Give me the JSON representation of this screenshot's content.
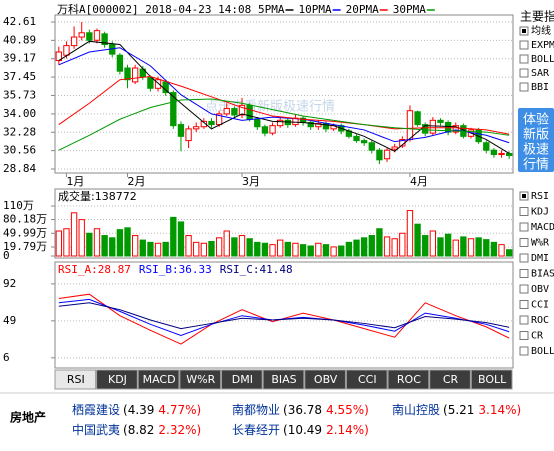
{
  "header": {
    "title": "万科A[000002] 2018-04-23 14:08"
  },
  "watermark": "点击查看新版极速行情",
  "chart_data": [
    {
      "type": "candlestick",
      "categories": [
        null,
        "1月",
        null,
        null,
        null,
        null,
        null,
        null,
        null,
        "2月",
        null,
        null,
        null,
        null,
        null,
        null,
        null,
        null,
        null,
        null,
        null,
        null,
        null,
        null,
        "3月",
        null,
        null,
        null,
        null,
        null,
        null,
        null,
        null,
        null,
        null,
        null,
        null,
        null,
        null,
        null,
        null,
        null,
        null,
        null,
        null,
        null,
        "4月",
        null,
        null,
        null,
        null,
        null,
        null,
        null,
        null,
        null,
        null,
        null,
        null,
        null
      ],
      "open": [
        39.0,
        39.5,
        40.4,
        41.2,
        41.6,
        40.9,
        41.5,
        40.5,
        39.5,
        38.3,
        37.0,
        38.2,
        37.4,
        36.4,
        37.0,
        36.0,
        33.0,
        31.5,
        32.6,
        32.8,
        33.3,
        33.0,
        34.0,
        34.5,
        33.9,
        34.8,
        33.5,
        32.8,
        32.2,
        32.9,
        33.4,
        33.0,
        33.6,
        33.2,
        32.8,
        33.1,
        32.6,
        32.9,
        32.4,
        31.9,
        31.5,
        31.3,
        30.6,
        29.8,
        30.7,
        31.0,
        31.6,
        34.2,
        33.0,
        32.2,
        33.4,
        33.2,
        32.3,
        32.9,
        31.9,
        32.5,
        31.3,
        30.6,
        30.2,
        30.3
      ],
      "high": [
        40.3,
        40.8,
        42.2,
        42.6,
        41.9,
        42.0,
        41.7,
        40.8,
        39.7,
        38.6,
        38.6,
        38.5,
        37.6,
        37.5,
        37.2,
        36.2,
        33.3,
        32.9,
        33.2,
        33.6,
        33.6,
        34.3,
        35.0,
        34.7,
        35.5,
        35.0,
        33.7,
        33.0,
        33.2,
        33.7,
        33.6,
        33.9,
        33.8,
        33.4,
        33.4,
        33.3,
        33.1,
        33.1,
        32.6,
        32.1,
        31.7,
        31.5,
        30.8,
        30.8,
        31.2,
        31.9,
        34.8,
        34.3,
        33.2,
        33.7,
        33.6,
        33.4,
        33.2,
        33.1,
        32.7,
        32.7,
        31.5,
        30.8,
        30.6,
        30.5
      ],
      "low": [
        38.6,
        39.2,
        40.1,
        40.9,
        40.6,
        40.6,
        40.2,
        39.3,
        37.7,
        36.4,
        36.8,
        37.2,
        36.1,
        36.1,
        35.7,
        32.6,
        30.5,
        30.8,
        32.3,
        32.6,
        32.7,
        32.8,
        33.8,
        33.6,
        33.6,
        33.3,
        32.5,
        31.9,
        32.0,
        32.7,
        32.7,
        32.8,
        32.9,
        32.5,
        32.5,
        32.3,
        32.4,
        32.1,
        31.7,
        31.3,
        31.0,
        30.3,
        29.3,
        29.5,
        30.4,
        30.8,
        31.4,
        32.8,
        31.9,
        32.0,
        32.9,
        32.0,
        32.1,
        31.7,
        31.7,
        31.2,
        30.3,
        29.9,
        29.9,
        29.8
      ],
      "close": [
        39.8,
        40.4,
        41.2,
        41.6,
        40.9,
        41.8,
        40.5,
        39.6,
        38.0,
        37.2,
        38.3,
        37.5,
        36.4,
        37.2,
        36.0,
        32.9,
        31.9,
        32.6,
        32.8,
        33.3,
        33.0,
        34.0,
        34.5,
        33.9,
        34.8,
        33.5,
        32.8,
        32.2,
        32.9,
        33.4,
        33.0,
        33.6,
        33.2,
        32.8,
        33.1,
        32.6,
        32.9,
        32.4,
        31.9,
        31.5,
        31.3,
        30.6,
        29.7,
        30.6,
        30.9,
        31.6,
        34.3,
        33.0,
        32.2,
        33.4,
        33.2,
        32.3,
        32.9,
        31.9,
        32.5,
        31.4,
        30.6,
        30.2,
        30.3,
        30.1
      ],
      "up_color": "#ff0000",
      "down_color": "#009900",
      "series": [
        {
          "name": "5PMA",
          "color": "#000000",
          "x": [
            0,
            4,
            8,
            12,
            16,
            20,
            24,
            28,
            32,
            36,
            40,
            44,
            48,
            52,
            56,
            59
          ],
          "values": [
            39.0,
            40.8,
            40.5,
            37.5,
            35.0,
            32.6,
            34.0,
            33.3,
            33.2,
            32.9,
            31.9,
            30.5,
            32.9,
            32.8,
            31.6,
            30.3
          ]
        },
        {
          "name": "10PMA",
          "color": "#0000ff",
          "x": [
            0,
            4,
            8,
            12,
            16,
            20,
            24,
            28,
            32,
            36,
            40,
            44,
            48,
            52,
            56,
            59
          ],
          "values": [
            38.6,
            39.8,
            40.2,
            38.5,
            35.8,
            34.0,
            33.4,
            33.7,
            33.5,
            33.0,
            32.5,
            31.4,
            31.8,
            32.5,
            32.0,
            31.3
          ]
        },
        {
          "name": "20PMA",
          "color": "#ff0000",
          "x": [
            0,
            4,
            8,
            12,
            16,
            20,
            24,
            28,
            32,
            36,
            40,
            44,
            48,
            52,
            56,
            59
          ],
          "values": [
            33.0,
            35.0,
            37.2,
            37.5,
            36.6,
            35.6,
            34.6,
            33.8,
            33.5,
            33.3,
            33.0,
            32.6,
            32.7,
            32.7,
            32.5,
            32.1
          ]
        },
        {
          "name": "30PMA",
          "color": "#009900",
          "x": [
            0,
            4,
            8,
            12,
            16,
            20,
            24,
            28,
            32,
            36,
            40,
            44,
            48,
            52,
            56,
            59
          ],
          "values": [
            30.6,
            32.0,
            33.5,
            34.6,
            35.3,
            35.4,
            35.0,
            34.4,
            33.8,
            33.4,
            33.0,
            32.7,
            32.5,
            32.4,
            32.3,
            32.0
          ]
        }
      ],
      "ylim": [
        28.84,
        42.61
      ],
      "yticks": [
        42.61,
        40.89,
        39.17,
        37.45,
        35.73,
        {
          "value": 34,
          "label": "34.00"
        },
        32.28,
        30.56,
        28.84
      ],
      "grid": true
    },
    {
      "type": "bar",
      "title": "成交量:138772",
      "values": [
        55,
        60,
        95,
        80,
        50,
        60,
        45,
        40,
        58,
        62,
        45,
        35,
        30,
        28,
        30,
        85,
        75,
        45,
        30,
        28,
        32,
        40,
        55,
        40,
        45,
        38,
        30,
        28,
        25,
        35,
        30,
        28,
        25,
        22,
        28,
        25,
        20,
        22,
        30,
        35,
        40,
        45,
        60,
        42,
        38,
        50,
        100,
        70,
        45,
        55,
        40,
        48,
        35,
        42,
        38,
        40,
        36,
        30,
        25,
        13.88
      ],
      "ylim": [
        0,
        110
      ],
      "yticks": [
        {
          "value": 110,
          "label": "110万"
        },
        {
          "value": 80.18,
          "label": "80.18万"
        },
        {
          "value": 49.99,
          "label": "49.99万"
        },
        {
          "value": 19.79,
          "label": "19.79万"
        },
        0
      ],
      "grid": true
    },
    {
      "type": "line",
      "series": [
        {
          "name": "RSI_A:28.87",
          "color": "#ff0000",
          "x": [
            0,
            4,
            8,
            12,
            16,
            20,
            24,
            28,
            32,
            36,
            40,
            44,
            48,
            52,
            56,
            59
          ],
          "values": [
            75,
            80,
            55,
            38,
            22,
            45,
            62,
            48,
            58,
            50,
            40,
            30,
            70,
            55,
            42,
            28.87
          ]
        },
        {
          "name": "RSI_B:36.33",
          "color": "#0000ff",
          "x": [
            0,
            4,
            8,
            12,
            16,
            20,
            24,
            28,
            32,
            36,
            40,
            44,
            48,
            52,
            56,
            59
          ],
          "values": [
            70,
            74,
            60,
            45,
            32,
            45,
            55,
            50,
            53,
            50,
            44,
            37,
            58,
            52,
            45,
            36.33
          ]
        },
        {
          "name": "RSI_C:41.48",
          "color": "#000080",
          "x": [
            0,
            4,
            8,
            12,
            16,
            20,
            24,
            28,
            32,
            36,
            40,
            44,
            48,
            52,
            56,
            59
          ],
          "values": [
            66,
            70,
            62,
            50,
            40,
            46,
            52,
            50,
            52,
            50,
            46,
            41,
            54,
            51,
            47,
            41.48
          ]
        }
      ],
      "ylim": [
        0,
        100
      ],
      "yticks": [
        92,
        49,
        6
      ],
      "grid": true
    }
  ],
  "indicator_tabs": [
    "RSI",
    "KDJ",
    "MACD",
    "W%R",
    "DMI",
    "BIAS",
    "OBV",
    "CCI",
    "ROC",
    "CR",
    "BOLL"
  ],
  "active_tab": 0,
  "side_panel": {
    "title": "主要指",
    "main_options": [
      {
        "label": "均线",
        "checked": true
      },
      {
        "label": "EXPM",
        "checked": false
      },
      {
        "label": "BOLL",
        "checked": false
      },
      {
        "label": "SAR",
        "checked": false
      },
      {
        "label": "BBI",
        "checked": false
      }
    ],
    "button_lines": [
      "体验",
      "新版",
      "极速",
      "行情"
    ],
    "indicator_options": [
      {
        "label": "RSI",
        "checked": true
      },
      {
        "label": "KDJ",
        "checked": false
      },
      {
        "label": "MACD",
        "checked": false
      },
      {
        "label": "W%R",
        "checked": false
      },
      {
        "label": "DMI",
        "checked": false
      },
      {
        "label": "BIAS",
        "checked": false
      },
      {
        "label": "OBV",
        "checked": false
      },
      {
        "label": "CCI",
        "checked": false
      },
      {
        "label": "ROC",
        "checked": false
      },
      {
        "label": "CR",
        "checked": false
      },
      {
        "label": "BOLL",
        "checked": false
      }
    ]
  },
  "sector": {
    "name": "房地产",
    "stocks": [
      {
        "name": "栖霞建设",
        "price": "(4.39",
        "change": "4.77%)"
      },
      {
        "name": "南都物业",
        "price": "(36.78",
        "change": "4.55%)"
      },
      {
        "name": "南山控股",
        "price": "(5.21",
        "change": "3.14%)"
      },
      {
        "name": "中国武夷",
        "price": "(8.82",
        "change": "2.32%)"
      },
      {
        "name": "长春经开",
        "price": "(10.49",
        "change": "2.14%)"
      }
    ]
  }
}
